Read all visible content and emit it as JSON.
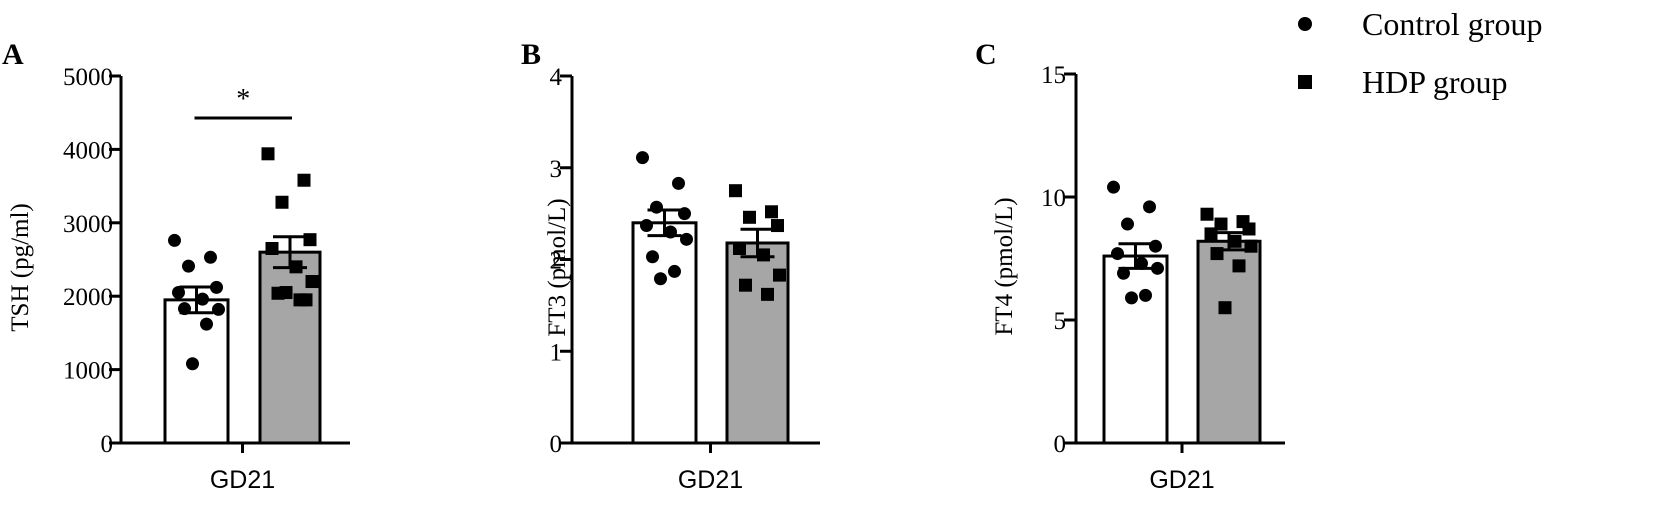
{
  "legend": {
    "position": "top-right",
    "items": [
      {
        "label": "Control group",
        "marker": "circle",
        "fill": "#ffffff"
      },
      {
        "label": "HDP group",
        "marker": "square",
        "fill": "#a6a6a6"
      }
    ]
  },
  "chart_data": [
    {
      "panel": "A",
      "type": "bar",
      "ylabel": "TSH (pg/ml)",
      "ylim": [
        0,
        5000
      ],
      "yticks": [
        0,
        1000,
        2000,
        3000,
        4000,
        5000
      ],
      "category": "GD21",
      "significance": "*",
      "series": [
        {
          "name": "Control group",
          "mean": 1950,
          "sem": 175,
          "points": [
            2760,
            2530,
            2410,
            2120,
            2050,
            1960,
            1820,
            1830,
            1620,
            1080
          ]
        },
        {
          "name": "HDP group",
          "mean": 2600,
          "sem": 210,
          "points": [
            3940,
            3580,
            3280,
            2770,
            2650,
            2400,
            2200,
            2040,
            1950,
            2050,
            1950
          ]
        }
      ]
    },
    {
      "panel": "B",
      "type": "bar",
      "ylabel": "FT3 (pmol/L)",
      "ylim": [
        0,
        4
      ],
      "yticks": [
        0,
        1,
        2,
        3,
        4
      ],
      "category": "GD21",
      "significance": "",
      "series": [
        {
          "name": "Control group",
          "mean": 2.4,
          "sem": 0.14,
          "points": [
            3.11,
            2.83,
            2.57,
            2.5,
            2.37,
            2.3,
            2.22,
            2.03,
            1.87,
            1.79
          ]
        },
        {
          "name": "HDP group",
          "mean": 2.18,
          "sem": 0.15,
          "points": [
            2.75,
            2.52,
            2.46,
            2.37,
            2.12,
            2.05,
            1.83,
            1.72,
            1.62
          ]
        }
      ]
    },
    {
      "panel": "C",
      "type": "bar",
      "ylabel": "FT4 (pmol/L)",
      "ylim": [
        0,
        15
      ],
      "yticks": [
        0,
        5,
        10,
        15
      ],
      "category": "GD21",
      "significance": "",
      "series": [
        {
          "name": "Control group",
          "mean": 7.6,
          "sem": 0.5,
          "points": [
            10.4,
            9.6,
            8.9,
            8.0,
            7.7,
            7.3,
            7.1,
            6.9,
            6.0,
            5.9
          ]
        },
        {
          "name": "HDP group",
          "mean": 8.2,
          "sem": 0.35,
          "points": [
            9.3,
            9.0,
            8.9,
            8.7,
            8.5,
            8.2,
            8.0,
            7.7,
            7.2,
            5.5
          ]
        }
      ]
    }
  ]
}
